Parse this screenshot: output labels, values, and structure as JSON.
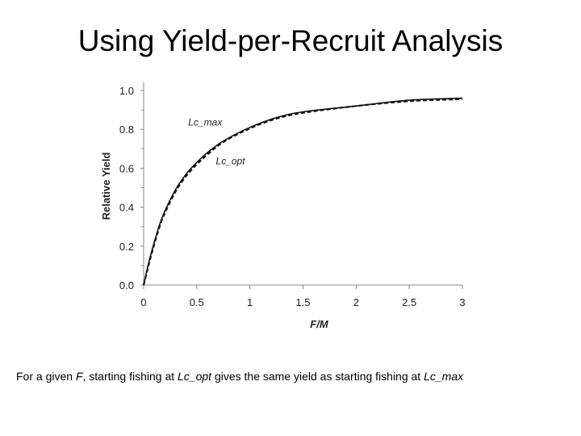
{
  "title": "Using Yield-per-Recruit Analysis",
  "caption": {
    "p1": "For a given ",
    "f": "F",
    "p2": ", starting fishing at ",
    "lc_opt": "Lc_opt",
    "p3": " gives the same yield as starting fishing at ",
    "lc_max": "Lc_max"
  },
  "chart_data": {
    "type": "line",
    "xlabel": "F/M",
    "ylabel": "Relative Yield",
    "xlim": [
      0,
      3
    ],
    "ylim": [
      0,
      1.0
    ],
    "x_ticks": [
      0,
      0.5,
      1,
      1.5,
      2,
      2.5,
      3
    ],
    "x_tick_labels": [
      "0",
      "0.5",
      "1",
      "1.5",
      "2",
      "2.5",
      "3"
    ],
    "y_ticks": [
      0,
      0.2,
      0.4,
      0.6,
      0.8,
      1.0
    ],
    "y_tick_labels": [
      "0.0",
      "0.2",
      "0.4",
      "0.6",
      "0.8",
      "1.0"
    ],
    "grid": false,
    "series": [
      {
        "name": "Lc_max",
        "style": "solid",
        "x": [
          0,
          0.05,
          0.1,
          0.15,
          0.2,
          0.3,
          0.4,
          0.5,
          0.6,
          0.75,
          1.0,
          1.25,
          1.5,
          2.0,
          2.5,
          3.0
        ],
        "y": [
          0,
          0.12,
          0.22,
          0.31,
          0.38,
          0.49,
          0.57,
          0.63,
          0.68,
          0.74,
          0.81,
          0.86,
          0.89,
          0.92,
          0.95,
          0.96
        ]
      },
      {
        "name": "Lc_opt",
        "style": "dashed",
        "x": [
          0,
          0.05,
          0.1,
          0.15,
          0.2,
          0.3,
          0.4,
          0.5,
          0.6,
          0.75,
          1.0,
          1.25,
          1.5,
          2.0,
          2.5,
          3.0
        ],
        "y": [
          0,
          0.11,
          0.21,
          0.3,
          0.37,
          0.48,
          0.56,
          0.62,
          0.67,
          0.735,
          0.805,
          0.855,
          0.885,
          0.92,
          0.945,
          0.955
        ]
      }
    ],
    "annotations": [
      {
        "text": "Lc_max",
        "x": 0.42,
        "y": 0.82
      },
      {
        "text": "Lc_opt",
        "x": 0.68,
        "y": 0.62
      }
    ]
  }
}
